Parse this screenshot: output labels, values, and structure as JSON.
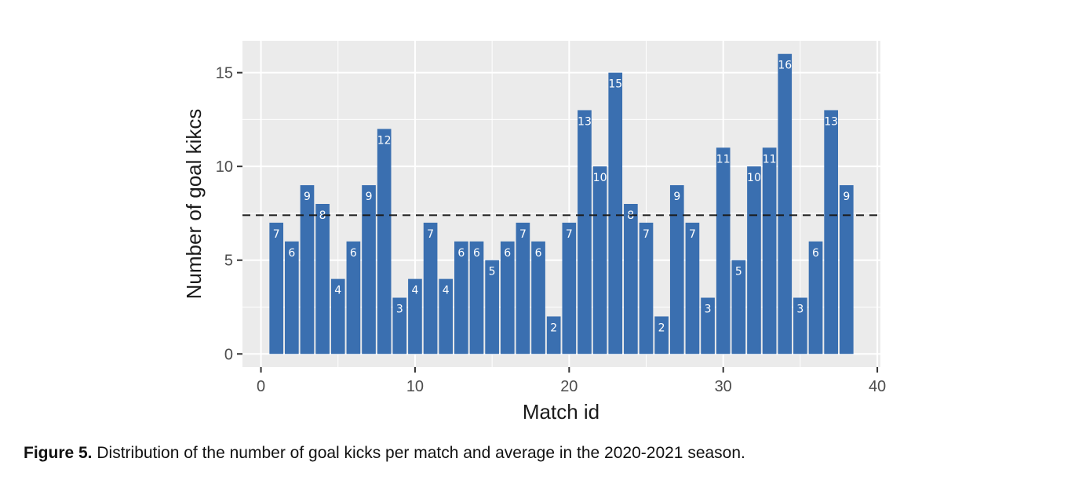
{
  "chart_data": {
    "type": "bar",
    "x": [
      1,
      2,
      3,
      4,
      5,
      6,
      7,
      8,
      9,
      10,
      11,
      12,
      13,
      14,
      15,
      16,
      17,
      18,
      19,
      20,
      21,
      22,
      23,
      24,
      25,
      26,
      27,
      28,
      29,
      30,
      31,
      32,
      33,
      34,
      35,
      36,
      37,
      38
    ],
    "values": [
      7,
      6,
      9,
      8,
      4,
      6,
      9,
      12,
      3,
      4,
      7,
      4,
      6,
      6,
      5,
      6,
      7,
      6,
      2,
      7,
      13,
      10,
      15,
      8,
      7,
      2,
      9,
      7,
      3,
      11,
      5,
      10,
      11,
      16,
      3,
      6,
      13,
      9
    ],
    "average_line": 7.4,
    "xlabel": "Match id",
    "ylabel": "Number of goal kikcs",
    "xlim": [
      -1.2,
      40.2
    ],
    "ylim": [
      -0.7,
      16.7
    ],
    "xticks": [
      0,
      10,
      20,
      30,
      40
    ],
    "yticks": [
      0,
      5,
      10,
      15
    ],
    "grid": true,
    "bar_color": "#3a6fb0",
    "panel_color": "#ebebeb",
    "average_line_style": "dashed"
  },
  "caption": {
    "label": "Figure 5.",
    "text": "Distribution of the number of goal kicks per match and average in the 2020-2021 season."
  }
}
